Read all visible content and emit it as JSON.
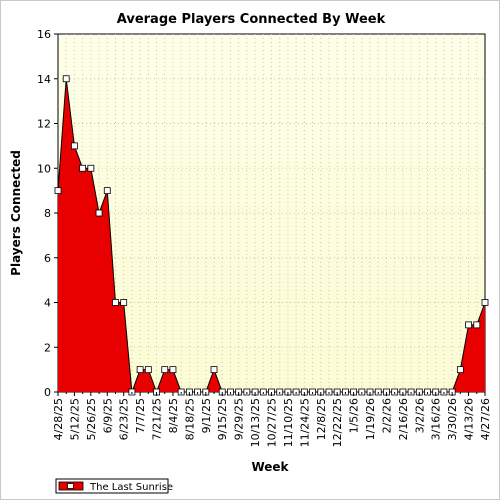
{
  "chart_data": {
    "type": "area",
    "title": "Average Players Connected By Week",
    "xlabel": "Week",
    "ylabel": "Players Connected",
    "ylim": [
      0,
      16
    ],
    "yticks": [
      0,
      2,
      4,
      6,
      8,
      10,
      12,
      14,
      16
    ],
    "grid": true,
    "legend_position": "bottom-left",
    "x_tick_labels": [
      "4/28/25",
      "5/12/25",
      "5/26/25",
      "6/9/25",
      "6/23/25",
      "7/7/25",
      "7/21/25",
      "8/4/25",
      "8/18/25",
      "9/1/25",
      "9/15/25",
      "9/29/25",
      "10/13/25",
      "10/27/25",
      "11/10/25",
      "11/24/25",
      "12/8/25",
      "12/22/25",
      "1/5/26",
      "1/19/26",
      "2/2/26",
      "2/16/26",
      "3/2/26",
      "3/16/26",
      "3/30/26",
      "4/13/26",
      "4/27/26"
    ],
    "colors": {
      "fill": "#e80000",
      "stroke": "#000000",
      "marker": "#ffffff",
      "background_top": "#fefee8",
      "background_bottom": "#fcfcd4"
    },
    "series": [
      {
        "name": "The Last Sunrise",
        "values": [
          9,
          14,
          11,
          10,
          10,
          8,
          9,
          4,
          4,
          0,
          1,
          1,
          0,
          1,
          1,
          0,
          0,
          0,
          0,
          1,
          0,
          0,
          0,
          0,
          0,
          0,
          0,
          0,
          0,
          0,
          0,
          0,
          0,
          0,
          0,
          0,
          0,
          0,
          0,
          0,
          0,
          0,
          0,
          0,
          0,
          0,
          0,
          0,
          0,
          1,
          3,
          3,
          4
        ]
      }
    ]
  }
}
